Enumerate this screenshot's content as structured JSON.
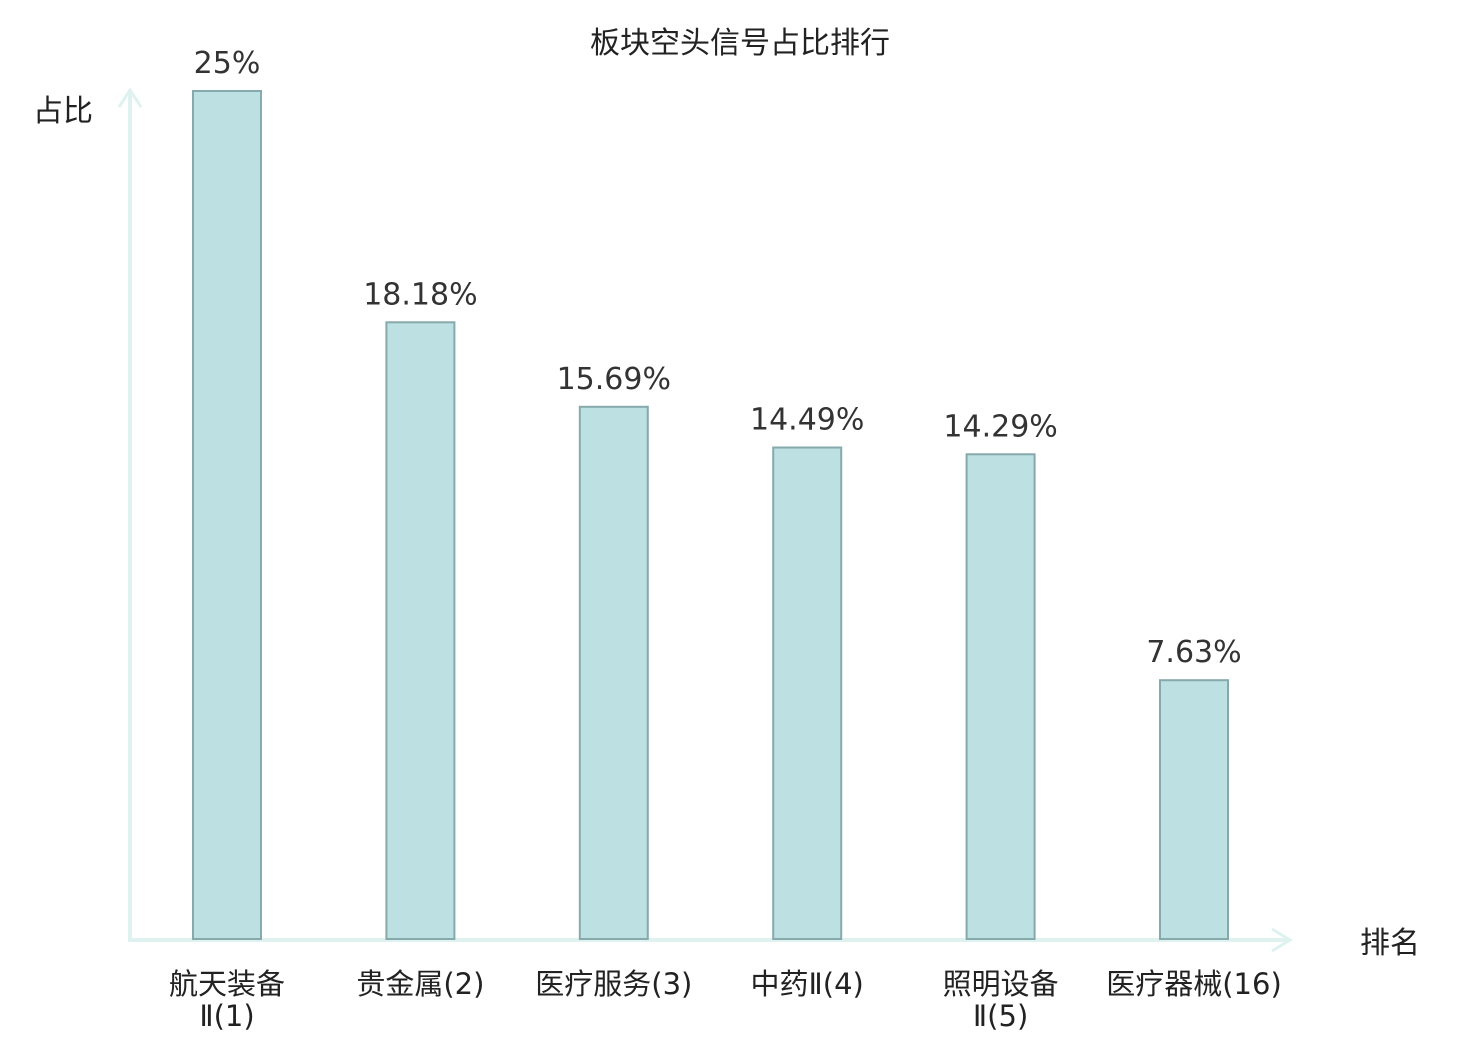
{
  "colors": {
    "bar_fill": "#bde0e2",
    "bar_stroke": "#86a9ab",
    "axis": "#dff2f0",
    "text": "#222222",
    "highlight": "#e8151d"
  },
  "chart_data": {
    "type": "bar",
    "title": "板块空头信号占比排行",
    "ylabel": "占比",
    "xlabel": "排名",
    "ylim": [
      0,
      25
    ],
    "grid": false,
    "value_unit": "%",
    "categories": [
      {
        "name": "航天装备",
        "rank": "Ⅱ(1)",
        "value": 25,
        "label": "25%",
        "highlight": false
      },
      {
        "name": "贵金属",
        "rank": "(2)",
        "value": 18.18,
        "label": "18.18%",
        "highlight": false
      },
      {
        "name": "医疗服务",
        "rank": "(3)",
        "value": 15.69,
        "label": "15.69%",
        "highlight": false
      },
      {
        "name": "中药",
        "rank": "Ⅱ(4)",
        "value": 14.49,
        "label": "14.49%",
        "highlight": false
      },
      {
        "name": "照明设备",
        "rank": "Ⅱ(5)",
        "value": 14.29,
        "label": "14.29%",
        "highlight": false
      },
      {
        "name": "医疗器械",
        "rank": "(16)",
        "value": 7.63,
        "label": "7.63%",
        "highlight": true
      }
    ]
  }
}
